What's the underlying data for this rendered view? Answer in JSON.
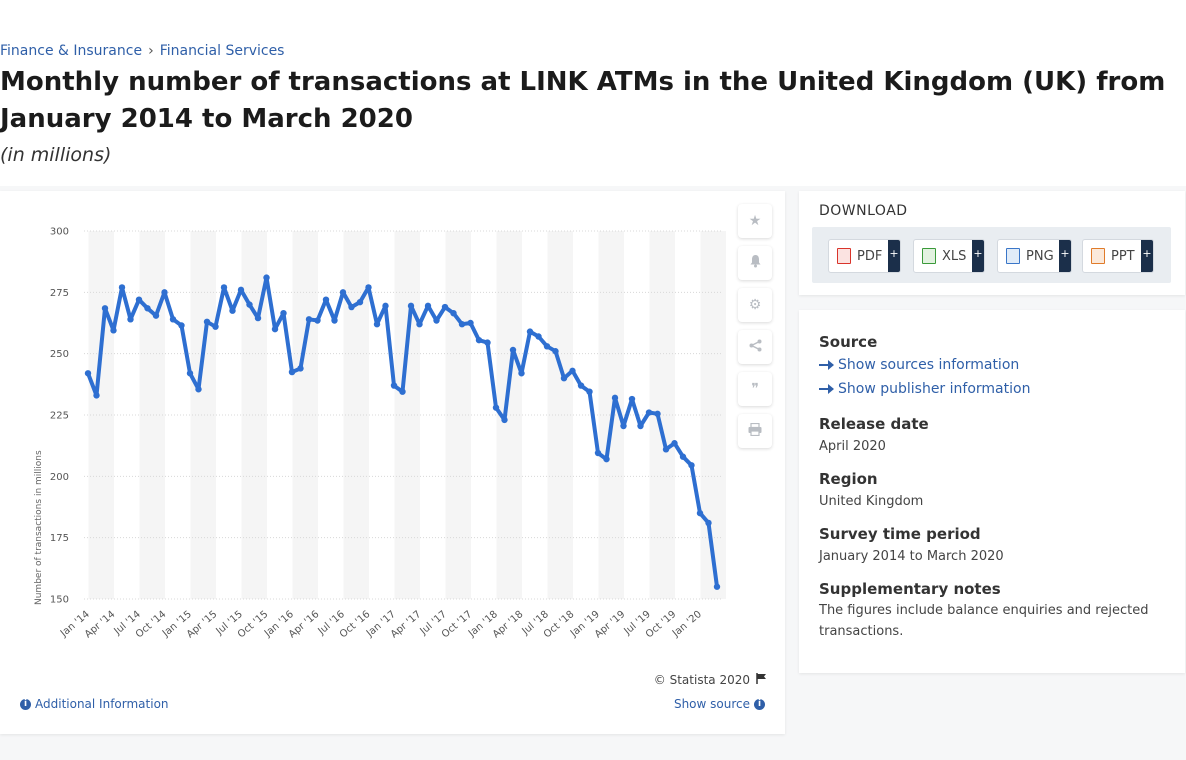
{
  "breadcrumb": {
    "item1": "Finance & Insurance",
    "separator": "›",
    "item2": "Financial Services"
  },
  "title": "Monthly number of transactions at LINK ATMs in the United Kingdom (UK) from January 2014 to March 2020",
  "subtitle": "(in millions)",
  "chart_credit": "© Statista 2020",
  "additional_info": "Additional Information",
  "show_source": "Show source",
  "download": {
    "title": "DOWNLOAD",
    "buttons": [
      {
        "label": "PDF",
        "plus": "+",
        "color": "#d9342b"
      },
      {
        "label": "XLS",
        "plus": "+",
        "color": "#3a9a3a"
      },
      {
        "label": "PNG",
        "plus": "+",
        "color": "#3a76c8"
      },
      {
        "label": "PPT",
        "plus": "+",
        "color": "#e07b2a"
      }
    ]
  },
  "info": {
    "source_heading": "Source",
    "show_sources": "Show sources information",
    "show_publisher": "Show publisher information",
    "release_heading": "Release date",
    "release_value": "April 2020",
    "region_heading": "Region",
    "region_value": "United Kingdom",
    "period_heading": "Survey time period",
    "period_value": "January 2014 to March 2020",
    "notes_heading": "Supplementary notes",
    "notes_value": "The figures include balance enquiries and rejected transactions."
  },
  "tool_icons": [
    "star-icon",
    "bell-icon",
    "gear-icon",
    "share-icon",
    "quote-icon",
    "print-icon"
  ],
  "chart_data": {
    "type": "line",
    "ylabel": "Number of transactions in millions",
    "ylim": [
      150,
      300
    ],
    "yticks": [
      150,
      175,
      200,
      225,
      250,
      275,
      300
    ],
    "x_tick_labels": [
      "Jan '14",
      "Apr '14",
      "Jul '14",
      "Oct '14",
      "Jan '15",
      "Apr '15",
      "Jul '15",
      "Oct '15",
      "Jan '16",
      "Apr '16",
      "Jul '16",
      "Oct '16",
      "Jan '17",
      "Apr '17",
      "Jul '17",
      "Oct '17",
      "Jan '18",
      "Apr '18",
      "Jul '18",
      "Oct '18",
      "Jan '19",
      "Apr '19",
      "Jul '19",
      "Oct '19",
      "Jan '20"
    ],
    "line_color": "#2e6fd1",
    "grid": true,
    "values": [
      242,
      233,
      268.5,
      259.5,
      277,
      264,
      272,
      268.5,
      265.5,
      275,
      264,
      261.5,
      242,
      235.5,
      263,
      261,
      277,
      267.5,
      276,
      270,
      264.5,
      281,
      260,
      266.5,
      242.5,
      244,
      264,
      263.5,
      272,
      263.5,
      275,
      269,
      271,
      277,
      262,
      269.5,
      237,
      234.5,
      269.5,
      262,
      269.5,
      263.5,
      269,
      266.5,
      262,
      262.5,
      255.5,
      254.5,
      228,
      223,
      251.5,
      242,
      259,
      257,
      253,
      251,
      240,
      243,
      237,
      234.5,
      209.5,
      207,
      232,
      220.5,
      231.5,
      220.5,
      226,
      225.5,
      211,
      213.5,
      208,
      204.5,
      185,
      181,
      155
    ]
  }
}
